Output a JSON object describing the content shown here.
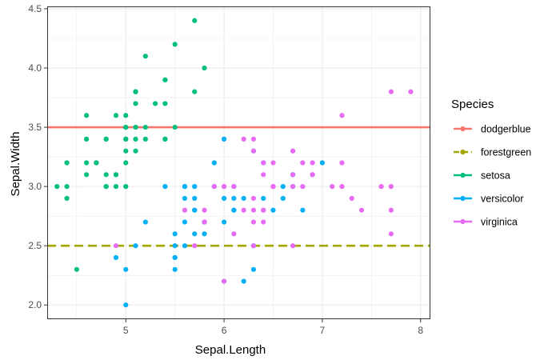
{
  "chart_data": {
    "type": "scatter",
    "title": "",
    "xlabel": "Sepal.Length",
    "ylabel": "Sepal.Width",
    "xlim": [
      4.2,
      8.1
    ],
    "ylim": [
      1.88,
      4.52
    ],
    "x_ticks": [
      5,
      6,
      7,
      8
    ],
    "y_ticks": [
      2.0,
      2.5,
      3.0,
      3.5,
      4.0,
      4.5
    ],
    "grid": true,
    "legend": {
      "title": "Species",
      "placement": "right",
      "entries": [
        {
          "label": "dodgerblue",
          "color": "#F8766D",
          "kind": "line-solid"
        },
        {
          "label": "forestgreen",
          "color": "#A3A500",
          "kind": "line-dashed"
        },
        {
          "label": "setosa",
          "color": "#00BF7D",
          "kind": "point-line"
        },
        {
          "label": "versicolor",
          "color": "#00B0F6",
          "kind": "point-line"
        },
        {
          "label": "virginica",
          "color": "#E76BF3",
          "kind": "point-line"
        }
      ]
    },
    "hlines": [
      {
        "name": "dodgerblue",
        "y": 3.5,
        "color": "#F8766D",
        "dash": "solid"
      },
      {
        "name": "forestgreen",
        "y": 2.5,
        "color": "#A3A500",
        "dash": "dashed"
      }
    ],
    "series": [
      {
        "name": "setosa",
        "color": "#00BF7D",
        "points": [
          [
            5.1,
            3.5
          ],
          [
            4.9,
            3.0
          ],
          [
            4.7,
            3.2
          ],
          [
            4.6,
            3.1
          ],
          [
            5.0,
            3.6
          ],
          [
            5.4,
            3.9
          ],
          [
            4.6,
            3.4
          ],
          [
            5.0,
            3.4
          ],
          [
            4.4,
            2.9
          ],
          [
            4.9,
            3.1
          ],
          [
            5.4,
            3.7
          ],
          [
            4.8,
            3.4
          ],
          [
            4.8,
            3.0
          ],
          [
            4.3,
            3.0
          ],
          [
            5.8,
            4.0
          ],
          [
            5.7,
            4.4
          ],
          [
            5.4,
            3.9
          ],
          [
            5.1,
            3.5
          ],
          [
            5.7,
            3.8
          ],
          [
            5.1,
            3.8
          ],
          [
            5.4,
            3.4
          ],
          [
            5.1,
            3.7
          ],
          [
            4.6,
            3.6
          ],
          [
            5.1,
            3.3
          ],
          [
            4.8,
            3.4
          ],
          [
            5.0,
            3.0
          ],
          [
            5.0,
            3.4
          ],
          [
            5.2,
            3.5
          ],
          [
            5.2,
            3.4
          ],
          [
            4.7,
            3.2
          ],
          [
            4.8,
            3.1
          ],
          [
            5.4,
            3.4
          ],
          [
            5.2,
            4.1
          ],
          [
            5.5,
            4.2
          ],
          [
            4.9,
            3.1
          ],
          [
            5.0,
            3.2
          ],
          [
            5.5,
            3.5
          ],
          [
            4.9,
            3.6
          ],
          [
            4.4,
            3.0
          ],
          [
            5.1,
            3.4
          ],
          [
            5.0,
            3.5
          ],
          [
            4.5,
            2.3
          ],
          [
            4.4,
            3.2
          ],
          [
            5.0,
            3.5
          ],
          [
            5.1,
            3.8
          ],
          [
            4.8,
            3.0
          ],
          [
            5.1,
            3.8
          ],
          [
            4.6,
            3.2
          ],
          [
            5.3,
            3.7
          ],
          [
            5.0,
            3.3
          ]
        ]
      },
      {
        "name": "versicolor",
        "color": "#00B0F6",
        "points": [
          [
            7.0,
            3.2
          ],
          [
            6.4,
            3.2
          ],
          [
            6.9,
            3.1
          ],
          [
            5.5,
            2.3
          ],
          [
            6.5,
            2.8
          ],
          [
            5.7,
            2.8
          ],
          [
            6.3,
            3.3
          ],
          [
            4.9,
            2.4
          ],
          [
            6.6,
            2.9
          ],
          [
            5.2,
            2.7
          ],
          [
            5.0,
            2.0
          ],
          [
            5.9,
            3.0
          ],
          [
            6.0,
            2.2
          ],
          [
            6.1,
            2.9
          ],
          [
            5.6,
            2.9
          ],
          [
            6.7,
            3.1
          ],
          [
            5.6,
            3.0
          ],
          [
            5.8,
            2.7
          ],
          [
            6.2,
            2.2
          ],
          [
            5.6,
            2.5
          ],
          [
            5.9,
            3.2
          ],
          [
            6.1,
            2.8
          ],
          [
            6.3,
            2.5
          ],
          [
            6.1,
            2.8
          ],
          [
            6.4,
            2.9
          ],
          [
            6.6,
            3.0
          ],
          [
            6.8,
            2.8
          ],
          [
            6.7,
            3.0
          ],
          [
            6.0,
            2.9
          ],
          [
            5.7,
            2.6
          ],
          [
            5.5,
            2.4
          ],
          [
            5.5,
            2.4
          ],
          [
            5.8,
            2.7
          ],
          [
            6.0,
            2.7
          ],
          [
            5.4,
            3.0
          ],
          [
            6.0,
            3.4
          ],
          [
            6.7,
            3.1
          ],
          [
            6.3,
            2.3
          ],
          [
            5.6,
            3.0
          ],
          [
            5.5,
            2.5
          ],
          [
            5.5,
            2.6
          ],
          [
            6.1,
            3.0
          ],
          [
            5.8,
            2.6
          ],
          [
            5.0,
            2.3
          ],
          [
            5.6,
            2.7
          ],
          [
            5.7,
            3.0
          ],
          [
            5.7,
            2.9
          ],
          [
            6.2,
            2.9
          ],
          [
            5.1,
            2.5
          ],
          [
            5.7,
            2.8
          ]
        ]
      },
      {
        "name": "virginica",
        "color": "#E76BF3",
        "points": [
          [
            6.3,
            3.3
          ],
          [
            5.8,
            2.7
          ],
          [
            7.1,
            3.0
          ],
          [
            6.3,
            2.9
          ],
          [
            6.5,
            3.0
          ],
          [
            7.6,
            3.0
          ],
          [
            4.9,
            2.5
          ],
          [
            7.3,
            2.9
          ],
          [
            6.7,
            2.5
          ],
          [
            7.2,
            3.6
          ],
          [
            6.5,
            3.2
          ],
          [
            6.4,
            2.7
          ],
          [
            6.8,
            3.0
          ],
          [
            5.7,
            2.5
          ],
          [
            5.8,
            2.8
          ],
          [
            6.4,
            3.2
          ],
          [
            6.5,
            3.0
          ],
          [
            7.7,
            3.8
          ],
          [
            7.7,
            2.6
          ],
          [
            6.0,
            2.2
          ],
          [
            6.9,
            3.2
          ],
          [
            5.6,
            2.8
          ],
          [
            7.7,
            2.8
          ],
          [
            6.3,
            2.7
          ],
          [
            6.7,
            3.3
          ],
          [
            7.2,
            3.2
          ],
          [
            6.2,
            2.8
          ],
          [
            6.1,
            3.0
          ],
          [
            6.4,
            2.8
          ],
          [
            7.2,
            3.0
          ],
          [
            7.4,
            2.8
          ],
          [
            7.9,
            3.8
          ],
          [
            6.4,
            2.8
          ],
          [
            6.3,
            2.8
          ],
          [
            6.1,
            2.6
          ],
          [
            7.7,
            3.0
          ],
          [
            6.3,
            3.4
          ],
          [
            6.4,
            3.1
          ],
          [
            6.0,
            3.0
          ],
          [
            6.9,
            3.1
          ],
          [
            6.7,
            3.1
          ],
          [
            6.9,
            3.1
          ],
          [
            5.8,
            2.7
          ],
          [
            6.8,
            3.2
          ],
          [
            6.7,
            3.3
          ],
          [
            6.7,
            3.0
          ],
          [
            6.3,
            2.5
          ],
          [
            6.5,
            3.0
          ],
          [
            6.2,
            3.4
          ],
          [
            5.9,
            3.0
          ]
        ]
      }
    ]
  }
}
